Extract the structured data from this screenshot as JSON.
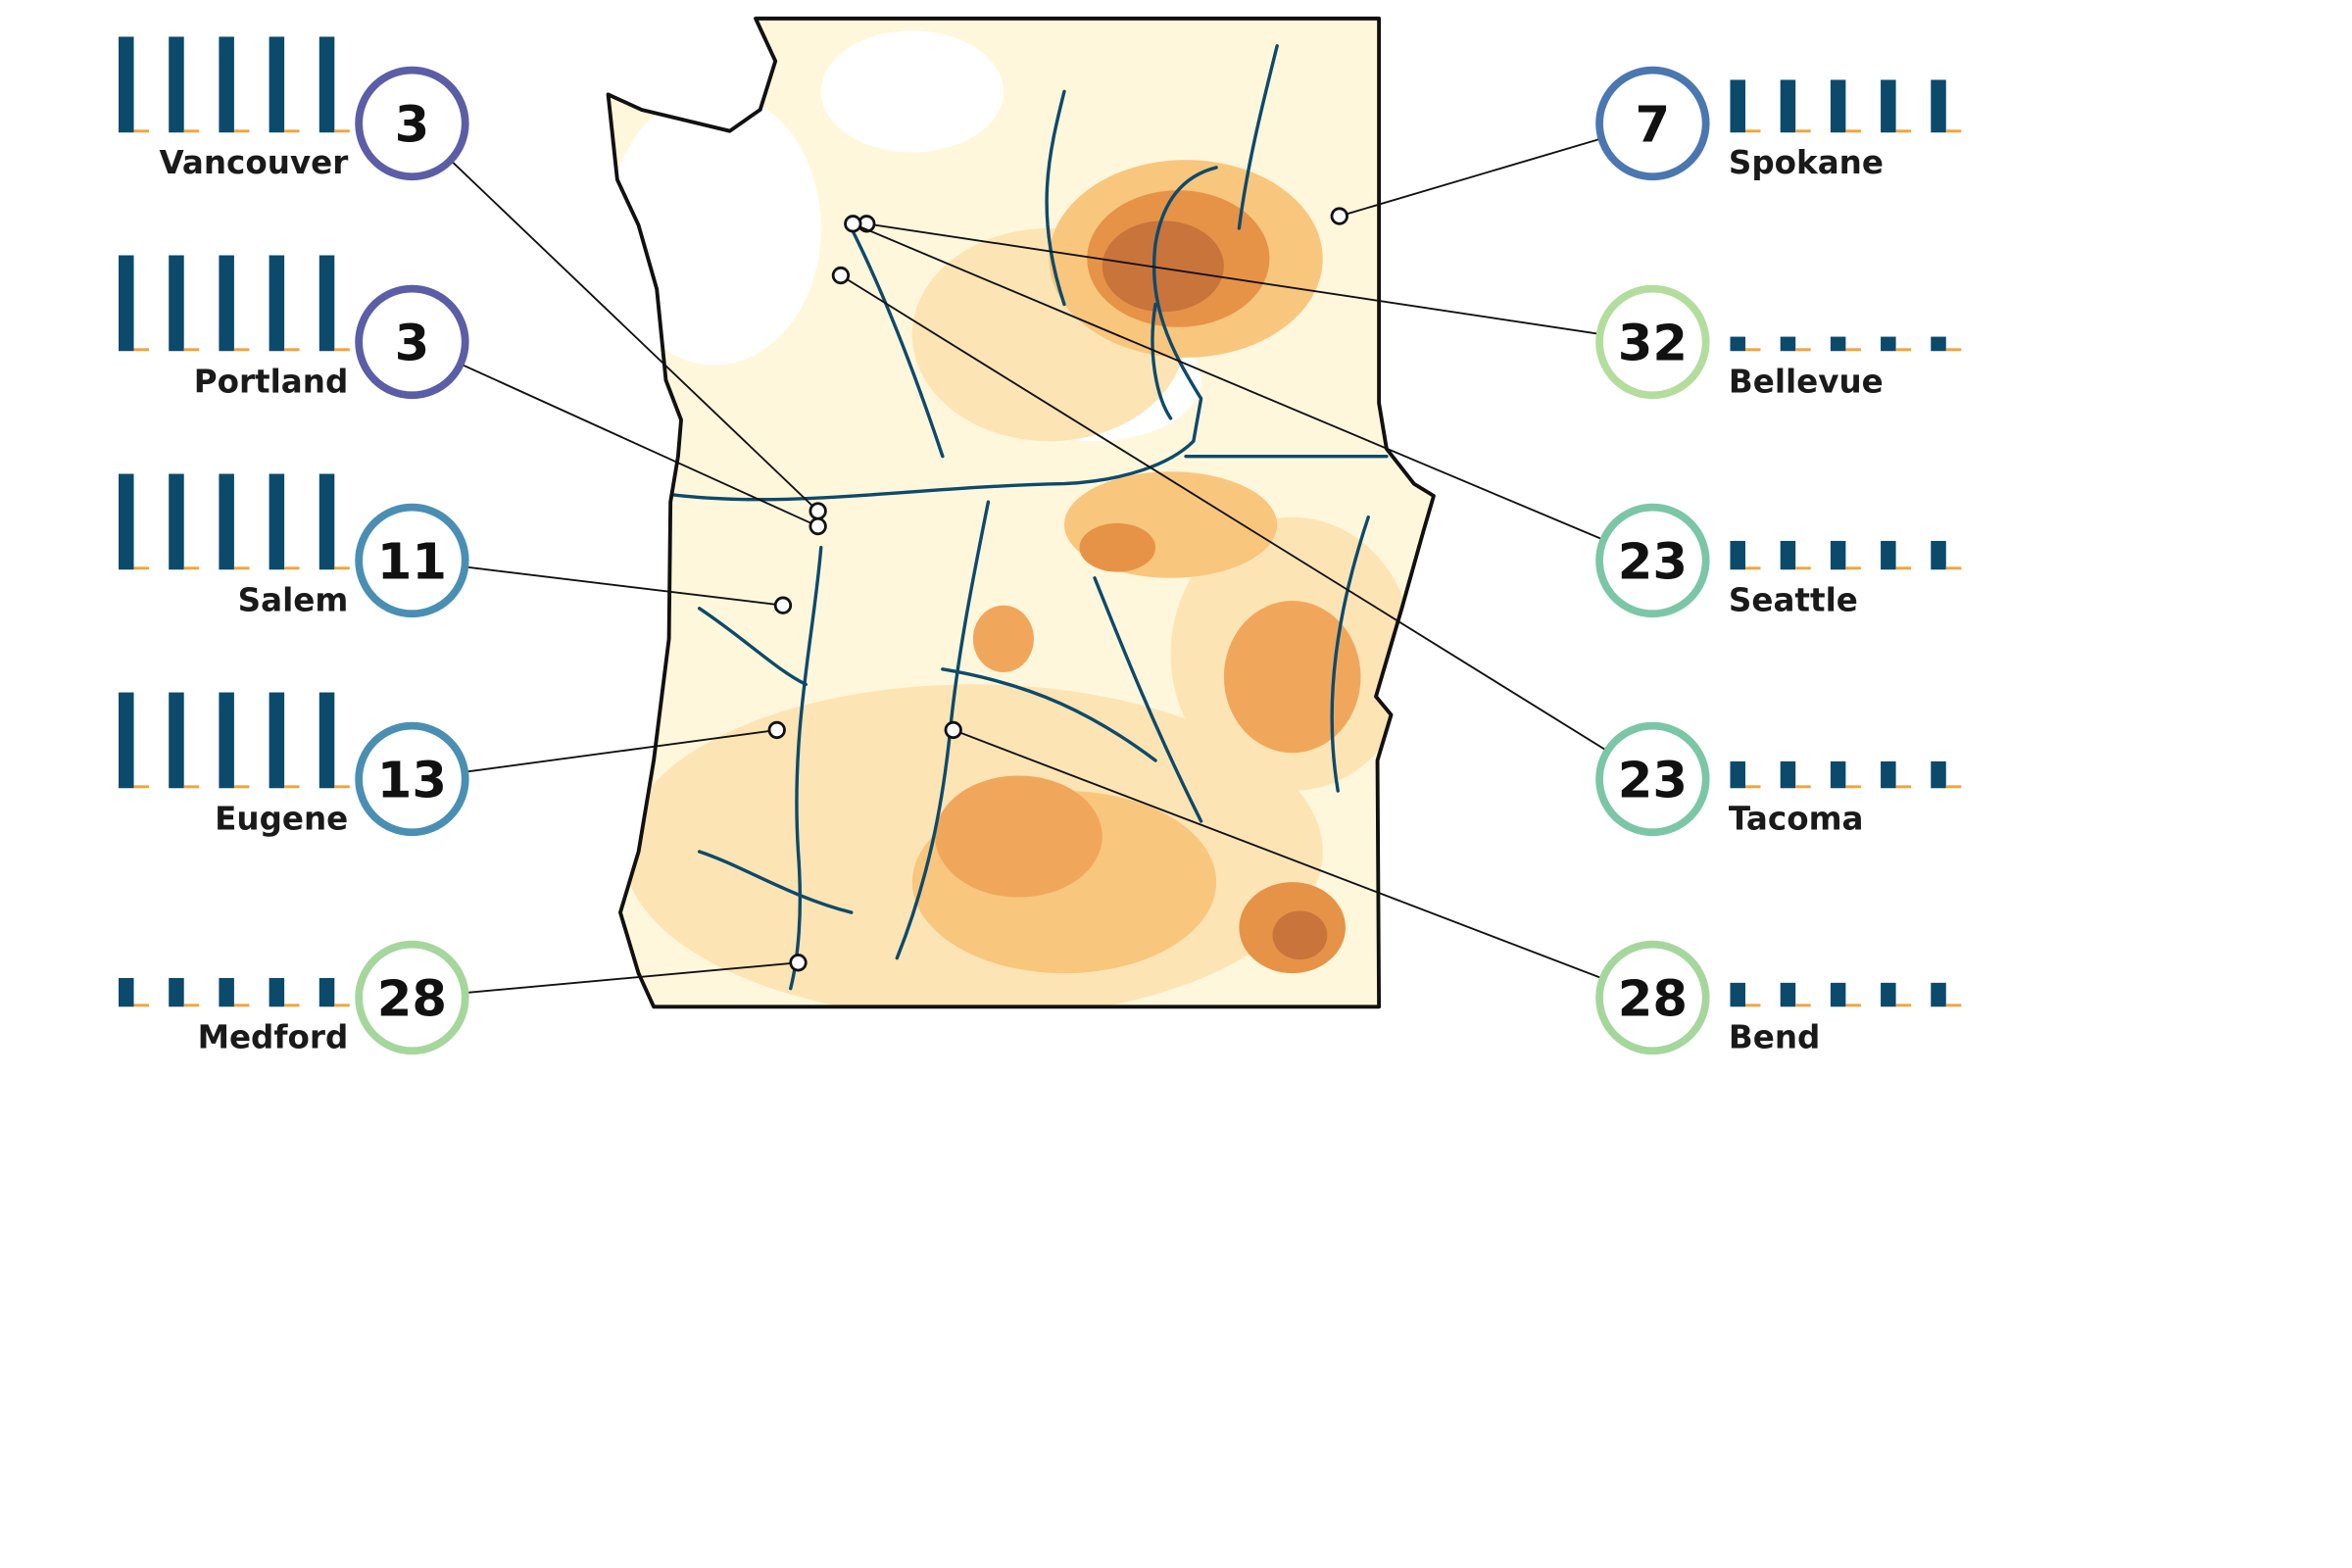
{
  "bar_ylim": [
    0,
    1
  ],
  "left_cities": [
    {
      "name": "Vancouver",
      "rank": 3,
      "color": "#5b5ea6",
      "bars": [
        {
          "color": "#0b4a6b",
          "values": [
            1,
            1,
            1,
            1,
            1
          ]
        },
        {
          "color": "#f3a43a",
          "values": [
            0.03,
            0.03,
            0.03,
            0.03,
            0.03
          ]
        }
      ]
    },
    {
      "name": "Portland",
      "rank": 3,
      "color": "#5b5ea6",
      "bars": [
        {
          "color": "#0b4a6b",
          "values": [
            1,
            1,
            1,
            1,
            1
          ]
        },
        {
          "color": "#f3a43a",
          "values": [
            0.03,
            0.03,
            0.03,
            0.03,
            0.03
          ]
        }
      ]
    },
    {
      "name": "Salem",
      "rank": 11,
      "color": "#4a8fb3",
      "bars": [
        {
          "color": "#0b4a6b",
          "values": [
            1,
            1,
            1,
            1,
            1
          ]
        },
        {
          "color": "#f3a43a",
          "values": [
            0.03,
            0.03,
            0.03,
            0.03,
            0.03
          ]
        }
      ]
    },
    {
      "name": "Eugene",
      "rank": 13,
      "color": "#4a8fb3",
      "bars": [
        {
          "color": "#0b4a6b",
          "values": [
            1,
            1,
            1,
            1,
            1
          ]
        },
        {
          "color": "#f3a43a",
          "values": [
            0.03,
            0.03,
            0.03,
            0.03,
            0.03
          ]
        }
      ]
    },
    {
      "name": "Medford",
      "rank": 28,
      "color": "#a5d79c",
      "bars": [
        {
          "color": "#0b4a6b",
          "values": [
            0.3,
            0.3,
            0.3,
            0.3,
            0.3
          ]
        },
        {
          "color": "#f3a43a",
          "values": [
            0.03,
            0.03,
            0.03,
            0.03,
            0.03
          ]
        }
      ]
    }
  ],
  "right_cities": [
    {
      "name": "Spokane",
      "rank": 7,
      "color": "#4b77b0",
      "bars": [
        {
          "color": "#0b4a6b",
          "values": [
            0.55,
            0.55,
            0.55,
            0.55,
            0.55
          ]
        },
        {
          "color": "#f3a43a",
          "values": [
            0.03,
            0.03,
            0.03,
            0.03,
            0.03
          ]
        }
      ]
    },
    {
      "name": "Bellevue",
      "rank": 32,
      "color": "#b3dd9c",
      "bars": [
        {
          "color": "#0b4a6b",
          "values": [
            0.15,
            0.15,
            0.15,
            0.15,
            0.15
          ]
        },
        {
          "color": "#f3a43a",
          "values": [
            0.03,
            0.03,
            0.03,
            0.03,
            0.03
          ]
        }
      ]
    },
    {
      "name": "Seattle",
      "rank": 23,
      "color": "#7cc6a8",
      "bars": [
        {
          "color": "#0b4a6b",
          "values": [
            0.3,
            0.3,
            0.3,
            0.3,
            0.3
          ]
        },
        {
          "color": "#f3a43a",
          "values": [
            0.03,
            0.03,
            0.03,
            0.03,
            0.03
          ]
        }
      ]
    },
    {
      "name": "Tacoma",
      "rank": 23,
      "color": "#7cc6a8",
      "bars": [
        {
          "color": "#0b4a6b",
          "values": [
            0.28,
            0.28,
            0.28,
            0.28,
            0.28
          ]
        },
        {
          "color": "#f3a43a",
          "values": [
            0.03,
            0.03,
            0.03,
            0.03,
            0.03
          ]
        }
      ]
    },
    {
      "name": "Bend",
      "rank": 28,
      "color": "#a5d79c",
      "bars": [
        {
          "color": "#0b4a6b",
          "values": [
            0.25,
            0.25,
            0.25,
            0.25,
            0.25
          ]
        },
        {
          "color": "#f3a43a",
          "values": [
            0.03,
            0.03,
            0.03,
            0.03,
            0.03
          ]
        }
      ]
    }
  ]
}
